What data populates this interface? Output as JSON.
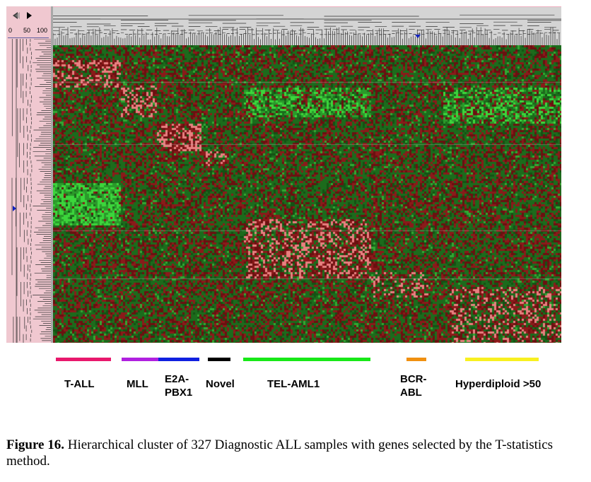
{
  "controls": {
    "scale_labels": [
      "0",
      "50",
      "100"
    ],
    "left_arrow_icon": "left-arrow-icon",
    "right_arrow_icon": "right-arrow-icon"
  },
  "colors": {
    "high": "#e88080",
    "medium_high": "#8b1a1a",
    "medium_low": "#1c6b1c",
    "low": "#3cd63c",
    "dendrogram_bg": "#d4d4d4",
    "control_bg": "#f0c8d0",
    "marker": "#1020c0"
  },
  "groups": [
    {
      "id": "t-all",
      "label": "T-ALL",
      "color": "#e8186c"
    },
    {
      "id": "mll",
      "label": "MLL",
      "color": "#b020e0"
    },
    {
      "id": "e2a",
      "label": "E2A-\nPBX1",
      "color": "#1020e0"
    },
    {
      "id": "novel",
      "label": "Novel",
      "color": "#000000"
    },
    {
      "id": "tel",
      "label": "TEL-AML1",
      "color": "#18e818"
    },
    {
      "id": "bcr",
      "label": "BCR-\nABL",
      "color": "#f09010"
    },
    {
      "id": "hyper",
      "label": "Hyperdiploid >50",
      "color": "#f8f020"
    }
  ],
  "caption": {
    "bold": "Figure 16.",
    "text": " Hierarchical cluster of 327 Diagnostic ALL samples with genes selected by the T-statistics method."
  }
}
